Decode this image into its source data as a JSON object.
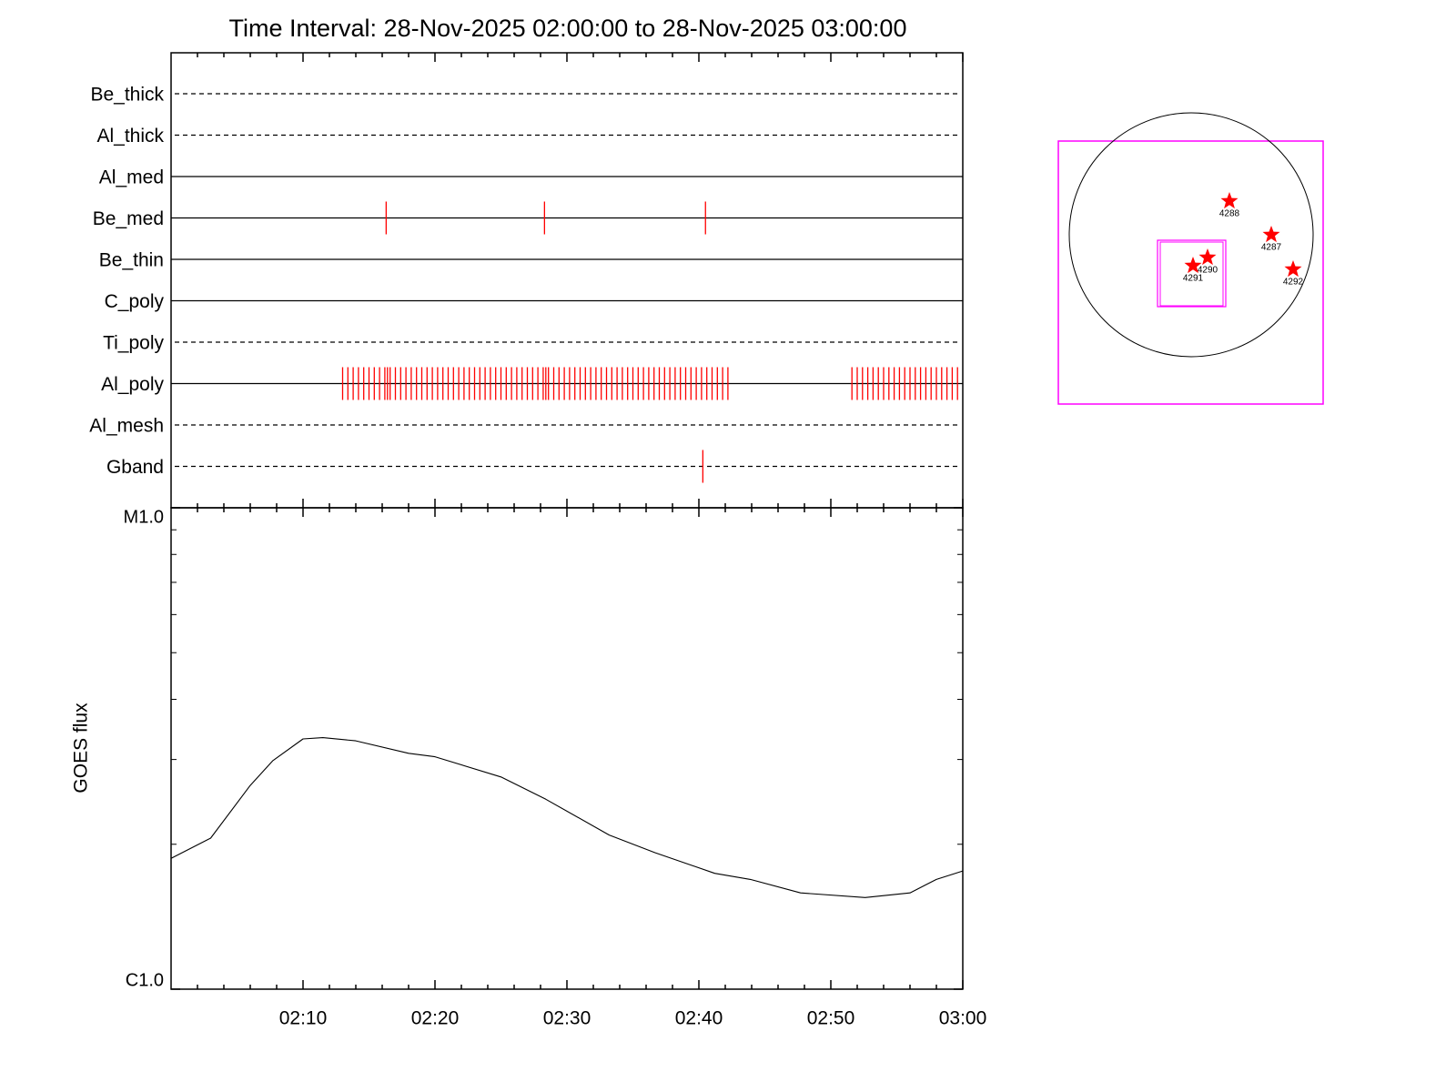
{
  "chart_data": [
    {
      "type": "event",
      "title": "Time Interval: 28-Nov-2025 02:00:00 to 28-Nov-2025 03:00:00",
      "color": "#ff0000",
      "rows": [
        {
          "name": "Be_thick",
          "style": "dashed",
          "events": []
        },
        {
          "name": "Al_thick",
          "style": "dashed",
          "events": []
        },
        {
          "name": "Al_med",
          "style": "solid",
          "events": []
        },
        {
          "name": "Be_med",
          "style": "solid",
          "events": [
            16.3,
            28.3,
            40.5
          ]
        },
        {
          "name": "Be_thin",
          "style": "solid",
          "events": []
        },
        {
          "name": "C_poly",
          "style": "solid",
          "events": []
        },
        {
          "name": "Ti_poly",
          "style": "dashed",
          "events": []
        },
        {
          "name": "Al_poly",
          "style": "solid",
          "events": [
            13.0,
            13.4,
            13.8,
            14.2,
            14.6,
            15.0,
            15.4,
            15.8,
            16.2,
            16.4,
            16.6,
            17.0,
            17.4,
            17.8,
            18.2,
            18.6,
            19.0,
            19.4,
            19.8,
            20.2,
            20.6,
            21.0,
            21.4,
            21.8,
            22.2,
            22.6,
            23.0,
            23.4,
            23.8,
            24.2,
            24.6,
            25.0,
            25.4,
            25.8,
            26.2,
            26.6,
            27.0,
            27.4,
            27.8,
            28.2,
            28.4,
            28.6,
            29.0,
            29.4,
            29.8,
            30.2,
            30.6,
            31.0,
            31.4,
            31.8,
            32.2,
            32.6,
            33.0,
            33.4,
            33.8,
            34.2,
            34.6,
            35.0,
            35.4,
            35.8,
            36.2,
            36.6,
            37.0,
            37.4,
            37.8,
            38.2,
            38.6,
            39.0,
            39.4,
            39.8,
            40.2,
            40.6,
            41.0,
            41.4,
            41.8,
            42.2,
            51.6,
            52.0,
            52.4,
            52.8,
            53.2,
            53.6,
            54.0,
            54.4,
            54.8,
            55.2,
            55.6,
            56.0,
            56.4,
            56.8,
            57.2,
            57.6,
            58.0,
            58.4,
            58.8,
            59.2,
            59.6
          ]
        },
        {
          "name": "Al_mesh",
          "style": "dashed",
          "events": []
        },
        {
          "name": "Gband",
          "style": "dashed",
          "events": [
            40.3
          ]
        }
      ]
    },
    {
      "type": "line",
      "ylabel": "GOES flux",
      "log_y": true,
      "color": "#000000",
      "xlim": [
        0,
        60
      ],
      "xticks": [
        {
          "value": 10,
          "label": "02:10"
        },
        {
          "value": 20,
          "label": "02:20"
        },
        {
          "value": 30,
          "label": "02:30"
        },
        {
          "value": 40,
          "label": "02:40"
        },
        {
          "value": 50,
          "label": "02:50"
        },
        {
          "value": 60,
          "label": "03:00"
        }
      ],
      "xminorticks": [
        2,
        4,
        6,
        8,
        12,
        14,
        16,
        18,
        22,
        24,
        26,
        28,
        32,
        34,
        36,
        38,
        42,
        44,
        46,
        48,
        52,
        54,
        56,
        58
      ],
      "ylim": [
        1e-06,
        1e-05
      ],
      "yticks": [
        {
          "value": 1e-05,
          "label": "M1.0"
        },
        {
          "value": 1e-06,
          "label": "C1.0"
        }
      ],
      "yminorticks": [
        2e-06,
        3e-06,
        4e-06,
        5e-06,
        6e-06,
        7e-06,
        8e-06,
        9e-06
      ],
      "x": [
        0,
        3,
        6,
        7.7,
        10,
        11.5,
        14,
        18,
        20,
        25,
        28.4,
        33.2,
        36.7,
        41.2,
        43.9,
        47.7,
        52.6,
        56,
        58,
        60
      ],
      "values": [
        1.87e-06,
        2.06e-06,
        2.65e-06,
        2.98e-06,
        3.31e-06,
        3.33e-06,
        3.28e-06,
        3.09e-06,
        3.04e-06,
        2.76e-06,
        2.48e-06,
        2.09e-06,
        1.92e-06,
        1.74e-06,
        1.69e-06,
        1.585e-06,
        1.55e-06,
        1.585e-06,
        1.69e-06,
        1.76e-06
      ]
    }
  ],
  "map": {
    "regions": [
      {
        "label": "4288"
      },
      {
        "label": "4287"
      },
      {
        "label": "4290"
      },
      {
        "label": "4291"
      },
      {
        "label": "4292"
      }
    ]
  }
}
